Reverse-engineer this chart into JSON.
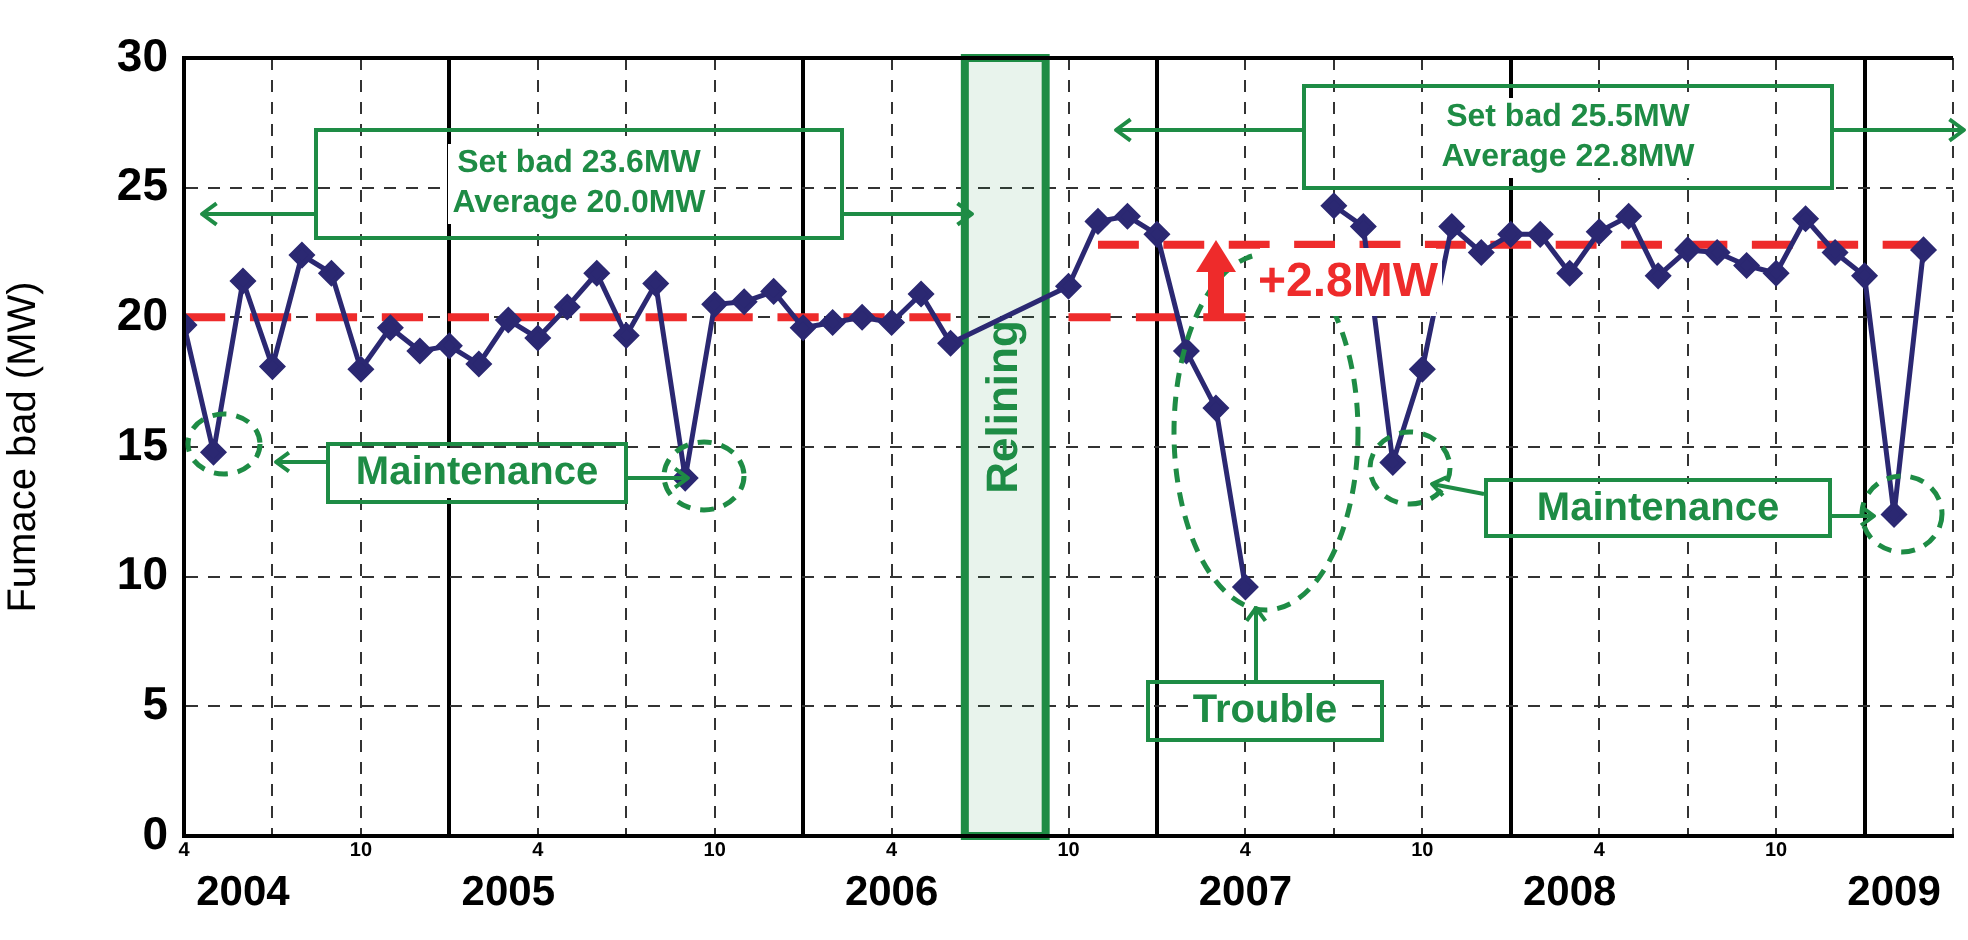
{
  "chart_data": {
    "type": "line",
    "ylabel": "Fumace bad (MW)",
    "xlim": [
      "2004-04",
      "2009-04"
    ],
    "xticks": [
      {
        "value": "2004-04",
        "label": "4"
      },
      {
        "value": "2004-07",
        "label": null
      },
      {
        "value": "2004-10",
        "label": "10"
      },
      {
        "value": "2005-01",
        "label": null
      },
      {
        "value": "2005-04",
        "label": "4"
      },
      {
        "value": "2005-07",
        "label": null
      },
      {
        "value": "2005-10",
        "label": "10"
      },
      {
        "value": "2006-01",
        "label": null
      },
      {
        "value": "2006-04",
        "label": "4"
      },
      {
        "value": "2006-10",
        "label": "10"
      },
      {
        "value": "2007-01",
        "label": null
      },
      {
        "value": "2007-04",
        "label": "4"
      },
      {
        "value": "2007-07",
        "label": null
      },
      {
        "value": "2007-10",
        "label": "10"
      },
      {
        "value": "2008-01",
        "label": null
      },
      {
        "value": "2008-04",
        "label": "4"
      },
      {
        "value": "2008-07",
        "label": null
      },
      {
        "value": "2008-10",
        "label": "10"
      },
      {
        "value": "2009-01",
        "label": null
      },
      {
        "value": "2009-04",
        "label": null
      }
    ],
    "x2lim": [
      "2004-04",
      "2009-04"
    ],
    "x2ticks": [
      {
        "value": "2004-06",
        "label": "2004"
      },
      {
        "value": "2005-03",
        "label": "2005"
      },
      {
        "value": "2006-04",
        "label": "2006"
      },
      {
        "value": "2007-04",
        "label": "2007"
      },
      {
        "value": "2008-03",
        "label": "2008"
      },
      {
        "value": "2009-02",
        "label": "2009"
      }
    ],
    "ylim": [
      0,
      30
    ],
    "yticks": [
      0,
      5,
      10,
      15,
      20,
      25,
      30
    ],
    "grid": true,
    "marker": "diamond",
    "series": [
      {
        "type": "line",
        "color": "#2b2872",
        "x": [
          "2004-04",
          "2004-05",
          "2004-06",
          "2004-07",
          "2004-08",
          "2004-09",
          "2004-10",
          "2004-11",
          "2004-12",
          "2005-01",
          "2005-02",
          "2005-03",
          "2005-04",
          "2005-05",
          "2005-06",
          "2005-07",
          "2005-08",
          "2005-09",
          "2005-10",
          "2005-11",
          "2005-12",
          "2006-01",
          "2006-02",
          "2006-03",
          "2006-04",
          "2006-05",
          "2006-06",
          "2006-10",
          "2006-11",
          "2006-12",
          "2007-01",
          "2007-02",
          "2007-03",
          "2007-04",
          "2007-05",
          "2007-06",
          "2007-07",
          "2007-08",
          "2007-09",
          "2007-10",
          "2007-11",
          "2007-12",
          "2008-01",
          "2008-02",
          "2008-03",
          "2008-04",
          "2008-05",
          "2008-06",
          "2008-07",
          "2008-08",
          "2008-09",
          "2008-10",
          "2008-11",
          "2008-12",
          "2009-01",
          "2009-02",
          "2009-03"
        ],
        "values": [
          19.7,
          14.8,
          21.4,
          18.1,
          22.4,
          21.7,
          18.0,
          19.6,
          18.7,
          18.9,
          18.2,
          19.9,
          19.2,
          20.4,
          21.7,
          19.3,
          21.3,
          13.8,
          20.5,
          20.6,
          21.0,
          19.6,
          19.8,
          20.0,
          19.8,
          20.9,
          19.0,
          21.2,
          23.7,
          23.9,
          23.2,
          18.7,
          16.5,
          9.6,
          null,
          null,
          24.3,
          23.5,
          14.4,
          18.0,
          23.5,
          22.5,
          23.2,
          23.2,
          21.7,
          23.3,
          23.9,
          21.6,
          22.6,
          22.5,
          22.0,
          21.7,
          23.8,
          22.5,
          21.6,
          12.4,
          22.6
        ]
      },
      {
        "type": "line",
        "color": "#ee2b2b",
        "line_style": "dashed",
        "marker": "none",
        "x": [
          "2004-04",
          "2006-06"
        ],
        "values": [
          20.0,
          20.0
        ]
      },
      {
        "type": "line",
        "color": "#ee2b2b",
        "line_style": "dashed",
        "marker": "none",
        "x": [
          "2006-10",
          "2007-04"
        ],
        "values": [
          20.0,
          20.0
        ]
      },
      {
        "type": "line",
        "color": "#ee2b2b",
        "line_style": "dashed",
        "marker": "none",
        "x": [
          "2006-11",
          "2009-03"
        ],
        "values": [
          22.8,
          22.8
        ]
      }
    ],
    "bands": [
      {
        "axis": "x",
        "from": "2006-06-16",
        "to": "2006-09-08",
        "label": "Relining",
        "color": "#1e8c45"
      }
    ],
    "annotations": [
      "Set bad 23.6MW\nAverage 20.0MW",
      "Set bad 25.5MW\nAverage 22.8MW",
      "Maintenance",
      "Maintenance",
      "Trouble",
      "+2.8MW"
    ]
  }
}
